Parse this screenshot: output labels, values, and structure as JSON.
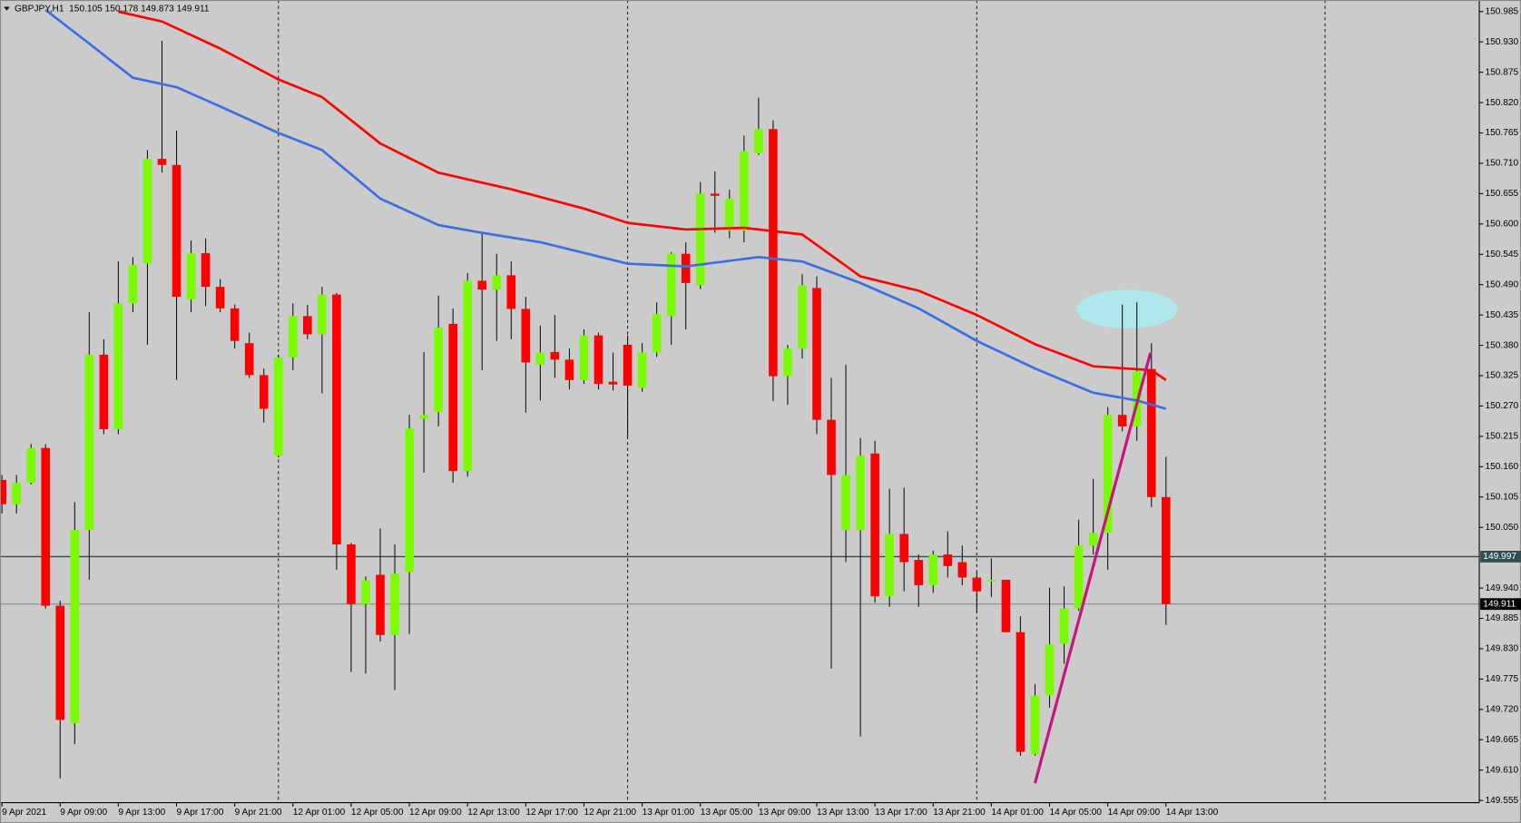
{
  "chart_data": {
    "type": "candlestick",
    "title": "GBPJPY,H1  150.105 150.178 149.873 149.911",
    "categories": [
      "9 Apr 2021",
      null,
      null,
      null,
      "9 Apr 09:00",
      null,
      null,
      null,
      "9 Apr 13:00",
      null,
      null,
      null,
      "9 Apr 17:00",
      null,
      null,
      null,
      "9 Apr 21:00",
      null,
      null,
      null,
      "12 Apr 01:00",
      null,
      null,
      null,
      "12 Apr 05:00",
      null,
      null,
      null,
      "12 Apr 09:00",
      null,
      null,
      null,
      "12 Apr 13:00",
      null,
      null,
      null,
      "12 Apr 17:00",
      null,
      null,
      null,
      "12 Apr 21:00",
      null,
      null,
      null,
      "13 Apr 01:00",
      null,
      null,
      null,
      "13 Apr 05:00",
      null,
      null,
      null,
      "13 Apr 09:00",
      null,
      null,
      null,
      "13 Apr 13:00",
      null,
      null,
      null,
      "13 Apr 17:00",
      null,
      null,
      null,
      "13 Apr 21:00",
      null,
      null,
      null,
      "14 Apr 01:00",
      null,
      null,
      null,
      "14 Apr 05:00",
      null,
      null,
      null,
      "14 Apr 09:00",
      null,
      null,
      null,
      "14 Apr 13:00"
    ],
    "open": [
      150.136,
      150.092,
      150.131,
      150.194,
      149.908,
      149.695,
      150.045,
      150.363,
      150.228,
      150.456,
      150.528,
      150.718,
      150.707,
      150.463,
      150.547,
      150.486,
      150.447,
      150.384,
      150.326,
      150.18,
      150.358,
      150.433,
      150.4,
      150.472,
      150.019,
      149.911,
      149.964,
      149.855,
      149.969,
      150.247,
      150.259,
      150.419,
      150.152,
      150.497,
      150.481,
      150.507,
      150.446,
      150.345,
      150.368,
      150.354,
      150.317,
      150.398,
      150.314,
      150.381,
      150.303,
      150.367,
      150.433,
      150.546,
      150.489,
      150.655,
      150.588,
      150.588,
      150.728,
      150.772,
      150.324,
      150.374,
      150.484,
      150.245,
      150.045,
      150.045,
      150.184,
      149.925,
      150.038,
      149.991,
      149.945,
      150.001,
      149.987,
      149.959,
      149.952,
      149.955,
      149.86,
      149.639,
      149.745,
      149.839,
      149.903,
      150.017,
      150.04,
      150.254,
      150.233,
      150.337,
      150.105
    ],
    "high": [
      150.145,
      150.145,
      150.201,
      150.201,
      149.917,
      150.096,
      150.44,
      150.391,
      150.532,
      150.54,
      150.734,
      150.932,
      150.769,
      150.57,
      150.574,
      150.5,
      150.454,
      150.403,
      150.338,
      150.363,
      150.456,
      150.453,
      150.486,
      150.475,
      150.022,
      149.961,
      150.048,
      150.019,
      150.254,
      150.368,
      150.47,
      150.447,
      150.511,
      150.584,
      150.546,
      150.532,
      150.468,
      150.416,
      150.435,
      150.374,
      150.409,
      150.403,
      150.367,
      150.398,
      150.384,
      150.458,
      150.549,
      150.567,
      150.676,
      150.695,
      150.662,
      150.76,
      150.829,
      150.788,
      150.381,
      150.509,
      150.505,
      150.321,
      150.345,
      150.212,
      150.207,
      150.12,
      150.122,
      150.001,
      150.008,
      150.043,
      150.017,
      149.969,
      149.994,
      149.955,
      149.889,
      149.766,
      149.941,
      149.943,
      150.064,
      150.138,
      150.268,
      150.454,
      150.458,
      150.384,
      150.178
    ],
    "low": [
      150.075,
      150.075,
      150.128,
      149.903,
      149.595,
      149.657,
      149.955,
      150.219,
      150.219,
      150.44,
      150.381,
      150.693,
      150.317,
      150.44,
      150.451,
      150.44,
      150.374,
      150.321,
      150.24,
      150.177,
      150.335,
      150.391,
      150.293,
      149.973,
      149.788,
      149.785,
      149.843,
      149.755,
      149.857,
      150.149,
      150.233,
      150.131,
      150.142,
      150.335,
      150.388,
      150.391,
      150.258,
      150.28,
      150.321,
      150.3,
      150.31,
      150.3,
      150.298,
      150.215,
      150.296,
      150.359,
      150.381,
      150.409,
      150.482,
      150.584,
      150.574,
      150.567,
      150.725,
      150.279,
      150.272,
      150.356,
      150.219,
      149.794,
      149.987,
      149.671,
      149.913,
      149.906,
      149.934,
      149.906,
      149.931,
      149.959,
      149.945,
      149.896,
      149.924,
      149.86,
      149.636,
      149.636,
      149.723,
      149.803,
      149.899,
      150.001,
      149.973,
      150.224,
      150.207,
      150.087,
      149.873
    ],
    "close": [
      150.092,
      150.131,
      150.194,
      149.908,
      149.701,
      150.045,
      150.363,
      150.228,
      150.456,
      150.526,
      150.718,
      150.707,
      150.468,
      150.547,
      150.486,
      150.447,
      150.388,
      150.326,
      150.265,
      150.358,
      150.433,
      150.4,
      150.472,
      150.019,
      149.911,
      149.954,
      149.855,
      149.966,
      150.229,
      150.254,
      150.412,
      150.152,
      150.497,
      150.481,
      150.507,
      150.446,
      150.349,
      150.367,
      150.354,
      150.317,
      150.398,
      150.31,
      150.309,
      150.307,
      150.367,
      150.437,
      150.546,
      150.493,
      150.655,
      150.651,
      150.646,
      150.732,
      150.772,
      150.324,
      150.374,
      150.489,
      150.245,
      150.145,
      150.145,
      150.18,
      149.925,
      150.038,
      149.987,
      149.945,
      150.001,
      149.98,
      149.959,
      149.934,
      149.955,
      149.86,
      149.643,
      149.745,
      149.838,
      149.903,
      150.017,
      150.04,
      150.254,
      150.233,
      150.333,
      150.105,
      149.911
    ],
    "up_color": "#7cfc00",
    "down_color": "#ff0000",
    "lines": [
      {
        "color": "#ff0000",
        "x": [
          8,
          11,
          15,
          19,
          22,
          26,
          30,
          35,
          40,
          43,
          47,
          51,
          55,
          59,
          63,
          67,
          71,
          75,
          79,
          80
        ],
        "values": [
          150.985,
          150.967,
          150.918,
          150.862,
          150.83,
          150.746,
          150.693,
          150.663,
          150.628,
          150.602,
          150.59,
          150.593,
          150.581,
          150.505,
          150.479,
          150.435,
          150.382,
          150.342,
          150.335,
          150.317
        ]
      },
      {
        "color": "#3e6ee0",
        "x": [
          3,
          6,
          9,
          12,
          15,
          19,
          22,
          26,
          30,
          33,
          37,
          43,
          47,
          52,
          55,
          59,
          63,
          67,
          71,
          75,
          78,
          80
        ],
        "values": [
          150.988,
          150.927,
          150.865,
          150.848,
          150.813,
          150.765,
          150.734,
          150.646,
          150.598,
          150.584,
          150.567,
          150.528,
          150.523,
          150.54,
          150.532,
          150.493,
          150.447,
          150.388,
          150.338,
          150.294,
          150.28,
          150.265
        ]
      }
    ],
    "levels": [
      149.997,
      149.911
    ],
    "ylim": [
      149.551,
      151.006
    ],
    "yticks": [
      150.985,
      {
        "value": 150.93,
        "label": "150.930"
      },
      150.875,
      {
        "value": 150.82,
        "label": "150.820"
      },
      150.765,
      {
        "value": 150.71,
        "label": "150.710"
      },
      150.655,
      {
        "value": 150.6,
        "label": "150.600"
      },
      150.545,
      {
        "value": 150.49,
        "label": "150.490"
      },
      150.435,
      {
        "value": 150.38,
        "label": "150.380"
      },
      150.325,
      {
        "value": 150.27,
        "label": "150.270"
      },
      150.215,
      {
        "value": 150.16,
        "label": "150.160"
      },
      150.105,
      {
        "value": 150.05,
        "label": "150.050"
      },
      {
        "value": 149.94,
        "label": "149.940"
      },
      149.885,
      {
        "value": 149.83,
        "label": "149.830"
      },
      149.775,
      {
        "value": 149.72,
        "label": "149.720"
      },
      149.665,
      {
        "value": 149.61,
        "label": "149.610"
      },
      149.555
    ]
  }
}
